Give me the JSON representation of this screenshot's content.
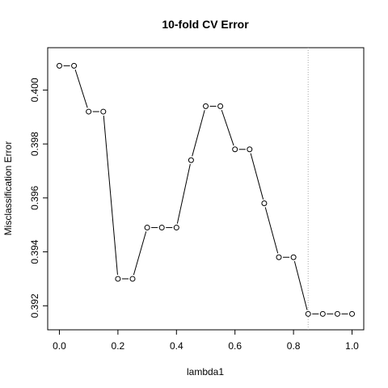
{
  "chart_data": {
    "type": "line",
    "title": "10-fold CV Error",
    "xlabel": "lambda1",
    "ylabel": "Misclassification Error",
    "x": [
      0.0,
      0.05,
      0.1,
      0.15,
      0.2,
      0.25,
      0.3,
      0.35,
      0.4,
      0.45,
      0.5,
      0.55,
      0.6,
      0.65,
      0.7,
      0.75,
      0.8,
      0.85,
      0.9,
      0.95,
      1.0
    ],
    "y": [
      0.4009,
      0.4009,
      0.3992,
      0.3992,
      0.393,
      0.393,
      0.3949,
      0.3949,
      0.3949,
      0.3974,
      0.3994,
      0.3994,
      0.3978,
      0.3978,
      0.3958,
      0.3938,
      0.3938,
      0.3917,
      0.3917,
      0.3917,
      0.3917
    ],
    "xlim": [
      -0.04,
      1.04
    ],
    "ylim": [
      0.39111,
      0.40157
    ],
    "xticks": [
      "0.0",
      "0.2",
      "0.4",
      "0.6",
      "0.8",
      "1.0"
    ],
    "yticks": [
      "0.392",
      "0.394",
      "0.396",
      "0.398",
      "0.400"
    ],
    "reference_vline": 0.85,
    "grid": false,
    "point_style": "open-circle",
    "line_color": "#000000",
    "vline_color": "#a8a8a8"
  }
}
